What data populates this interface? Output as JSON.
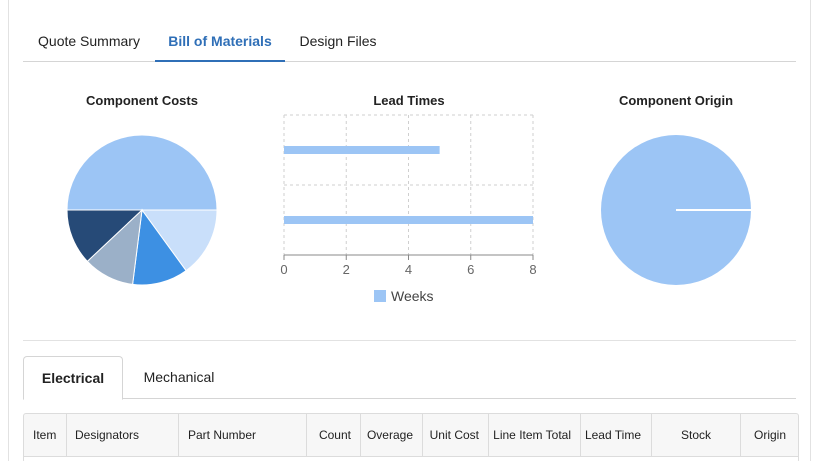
{
  "tabs": [
    {
      "label": "Quote Summary",
      "active": false
    },
    {
      "label": "Bill of Materials",
      "active": true
    },
    {
      "label": "Design Files",
      "active": false
    }
  ],
  "colors": {
    "accent": "#2f6fb7",
    "light_blue": "#9cc5f5"
  },
  "charts": {
    "component_costs_title": "Component Costs",
    "lead_times_title": "Lead Times",
    "component_origin_title": "Component Origin"
  },
  "chart_data": [
    {
      "type": "pie",
      "title": "Component Costs",
      "values": [
        50,
        15,
        12,
        11,
        12
      ],
      "colors": [
        "#9cc5f5",
        "#c9dffa",
        "#3d90e3",
        "#9bb0c8",
        "#264a77"
      ]
    },
    {
      "type": "bar",
      "orientation": "horizontal",
      "title": "Lead Times",
      "categories": [
        "",
        ""
      ],
      "series": [
        {
          "name": "Weeks",
          "values": [
            5,
            8
          ]
        }
      ],
      "xlim": [
        0,
        8
      ],
      "xticks": [
        "0",
        "2",
        "4",
        "6",
        "8"
      ],
      "legend": "bottom",
      "grid": true
    },
    {
      "type": "pie",
      "title": "Component Origin",
      "values": [
        100
      ],
      "colors": [
        "#9cc5f5"
      ]
    }
  ],
  "subtabs": [
    {
      "label": "Electrical",
      "active": true
    },
    {
      "label": "Mechanical",
      "active": false
    }
  ],
  "table": {
    "headers": [
      "Item",
      "Designators",
      "Part Number",
      "Count",
      "Overage",
      "Unit Cost",
      "Line Item Total",
      "Lead Time",
      "Stock",
      "Origin"
    ]
  }
}
